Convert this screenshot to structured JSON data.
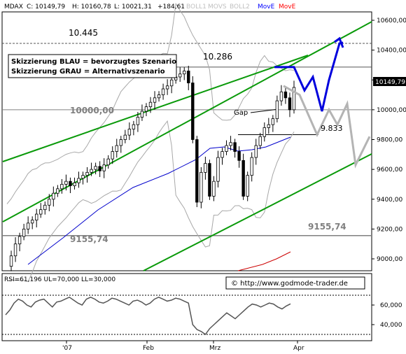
{
  "header": {
    "symbol": "MDAX",
    "close_label": "C: 10149,79",
    "high_label": "H: 10160,78",
    "low_label": "L: 10021,31",
    "change_label": "+184,61",
    "indicators": [
      {
        "label": "BOLL1",
        "color": "#c0c0c0"
      },
      {
        "label": "MOVS",
        "color": "#c0c0c0"
      },
      {
        "label": "BOLL2",
        "color": "#c0c0c0"
      },
      {
        "label": "MovE",
        "color": "#0000ff"
      },
      {
        "label": "MovE",
        "color": "#ff0000"
      }
    ]
  },
  "legend_box": {
    "line1": "Skizzierung BLAU = bevorzugtes Szenario",
    "line2": "Skizzierung GRAU = Alternativszenario"
  },
  "annotations": {
    "level_top": "10.445",
    "level_mid": "10.286",
    "level_10000": "10000,00",
    "level_9155_left": "9155,74",
    "level_9155_right": "9155,74",
    "level_9833": "9.833",
    "gap": "Gap",
    "watermark": "© http://www.godmode-trader.de"
  },
  "price_axis": {
    "ticks": [
      "10600,00",
      "10400,00",
      "10200,00",
      "10000,00",
      "9800,00",
      "9600,00",
      "9400,00",
      "9200,00",
      "9000,00"
    ],
    "last_price": "10149,79"
  },
  "rsi": {
    "header": "RSI=61,196  UL=70,000  LL=30,000",
    "ticks": [
      "60,000",
      "40,000"
    ]
  },
  "time_axis": [
    "'07",
    "Feb",
    "Mrz",
    "Apr"
  ],
  "colors": {
    "trend_channel": "#0a9a0a",
    "blue_scenario": "#0000dd",
    "gray_scenario": "#b4b4b4",
    "moving_avg_blue": "#0000cc",
    "moving_avg_red": "#cc0000",
    "bollinger": "#a8a8a8",
    "candle": "#000000"
  },
  "chart_data": [
    {
      "type": "candlestick",
      "title": "MDAX",
      "ylim": [
        8920,
        10680
      ],
      "y_ticks": [
        9000,
        9200,
        9400,
        9600,
        9800,
        10000,
        10200,
        10400,
        10600
      ],
      "x_labels": [
        "'07",
        "Feb",
        "Mrz",
        "Apr"
      ],
      "close_path": [
        8950,
        9020,
        9100,
        9150,
        9200,
        9240,
        9260,
        9300,
        9330,
        9360,
        9400,
        9440,
        9470,
        9500,
        9520,
        9490,
        9510,
        9540,
        9560,
        9580,
        9600,
        9620,
        9590,
        9630,
        9670,
        9720,
        9760,
        9800,
        9830,
        9870,
        9900,
        9950,
        9990,
        10020,
        10050,
        10080,
        10100,
        10140,
        10160,
        10200,
        10220,
        10240,
        10260,
        10180,
        9800,
        9380,
        9580,
        9640,
        9420,
        9520,
        9680,
        9720,
        9760,
        9780,
        9720,
        9660,
        9420,
        9560,
        9680,
        9760,
        9820,
        9880,
        9900,
        9940,
        10060,
        10120,
        10080,
        10000,
        10149.79
      ],
      "horizontal_levels": [
        10445,
        10286,
        10000,
        9833,
        9155.74
      ],
      "trend_channel": {
        "upper": [
          {
            "x": "early Jan",
            "y": 9900
          },
          {
            "x": "mid Apr",
            "y": 10620
          }
        ],
        "lower": [
          {
            "x": "early Feb",
            "y": 8900
          },
          {
            "x": "mid Apr",
            "y": 9650
          }
        ],
        "middle": [
          {
            "x": "early Jan",
            "y": 9170
          },
          {
            "x": "mid Apr",
            "y": 10280
          }
        ]
      },
      "scenario_blue": [
        10286,
        10286,
        10130,
        10220,
        9990,
        10200,
        10445,
        10450
      ],
      "scenario_gray": [
        10160,
        10100,
        9833,
        10000,
        9900,
        10040,
        9630,
        9820
      ]
    },
    {
      "type": "line",
      "title": "RSI",
      "series": [
        {
          "name": "RSI",
          "values": [
            50,
            55,
            62,
            66,
            64,
            60,
            58,
            63,
            65,
            66,
            62,
            58,
            63,
            64,
            66,
            68,
            65,
            62,
            60,
            66,
            68,
            66,
            63,
            62,
            64,
            67,
            66,
            64,
            62,
            60,
            64,
            65,
            63,
            60,
            62,
            66,
            68,
            66,
            64,
            65,
            67,
            66,
            64,
            62,
            40,
            35,
            33,
            30,
            36,
            40,
            44,
            48,
            52,
            49,
            46,
            50,
            54,
            58,
            61,
            60,
            58,
            60,
            62,
            61,
            58,
            56,
            59,
            61.196
          ]
        }
      ],
      "upper_limit": 70,
      "lower_limit": 30,
      "y_ticks": [
        40,
        60
      ]
    }
  ]
}
